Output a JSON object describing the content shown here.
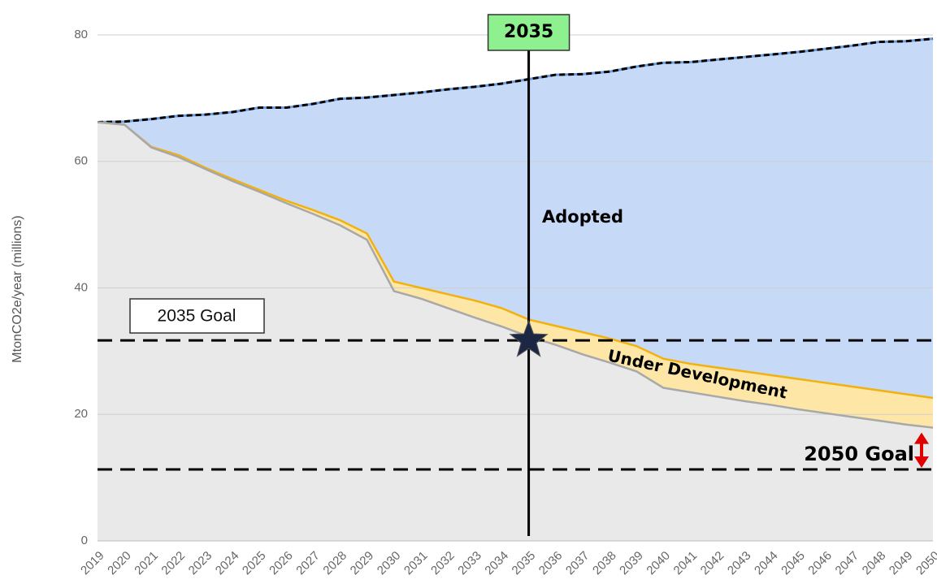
{
  "chart_data": {
    "type": "area",
    "ylabel": "MtonCO2e/year (millions)",
    "x": [
      2019,
      2020,
      2021,
      2022,
      2023,
      2024,
      2025,
      2026,
      2027,
      2028,
      2029,
      2030,
      2031,
      2032,
      2033,
      2034,
      2035,
      2036,
      2037,
      2038,
      2039,
      2040,
      2041,
      2042,
      2043,
      2044,
      2045,
      2046,
      2047,
      2048,
      2049,
      2050
    ],
    "xlim": [
      2019,
      2050
    ],
    "xticks": [
      2019,
      2020,
      2021,
      2022,
      2023,
      2024,
      2025,
      2026,
      2027,
      2028,
      2029,
      2030,
      2031,
      2032,
      2033,
      2034,
      2035,
      2036,
      2037,
      2038,
      2039,
      2040,
      2041,
      2042,
      2043,
      2044,
      2045,
      2046,
      2047,
      2048,
      2049,
      2050
    ],
    "ylim": [
      0,
      80
    ],
    "yticks": [
      0,
      20,
      40,
      60,
      80
    ],
    "grid": true,
    "series": [
      {
        "color": "#c6d9f6",
        "line_color": "#000000",
        "dashed": true,
        "values": [
          66.2,
          66.3,
          66.7,
          67.2,
          67.4,
          67.8,
          68.5,
          68.5,
          69.1,
          69.9,
          70.1,
          70.5,
          70.9,
          71.4,
          71.8,
          72.3,
          73.0,
          73.7,
          73.8,
          74.2,
          75.0,
          75.6,
          75.7,
          76.1,
          76.5,
          76.9,
          77.3,
          77.8,
          78.3,
          78.9,
          79.0,
          79.4
        ]
      },
      {
        "color": "#fde6a6",
        "line_color": "#f2b10c",
        "dashed": false,
        "values": [
          66.2,
          65.8,
          62.3,
          61.0,
          59.0,
          57.2,
          55.5,
          53.8,
          52.3,
          50.7,
          48.6,
          41.0,
          40.0,
          39.0,
          38.0,
          36.8,
          35.0,
          34.0,
          33.0,
          32.0,
          30.8,
          28.8,
          28.0,
          27.4,
          26.8,
          26.2,
          25.6,
          25.0,
          24.4,
          23.8,
          23.2,
          22.6
        ]
      },
      {
        "color": "#e9e9e9",
        "line_color": "#a8a8a8",
        "dashed": false,
        "values": [
          66.2,
          65.8,
          62.2,
          60.7,
          58.8,
          56.9,
          55.2,
          53.4,
          51.7,
          49.9,
          47.6,
          39.5,
          38.3,
          36.8,
          35.3,
          33.9,
          32.3,
          31.0,
          29.5,
          28.2,
          26.8,
          24.2,
          23.5,
          22.8,
          22.1,
          21.5,
          20.8,
          20.2,
          19.6,
          19.0,
          18.4,
          17.9
        ]
      }
    ],
    "highlight": {
      "x": 2035
    },
    "goals": [
      {
        "label": "2035 Goal",
        "value": 31.7
      },
      {
        "label": "2050 Goal",
        "value": 11.3
      }
    ],
    "annotations": [
      "Adopted",
      "Under Development"
    ]
  }
}
